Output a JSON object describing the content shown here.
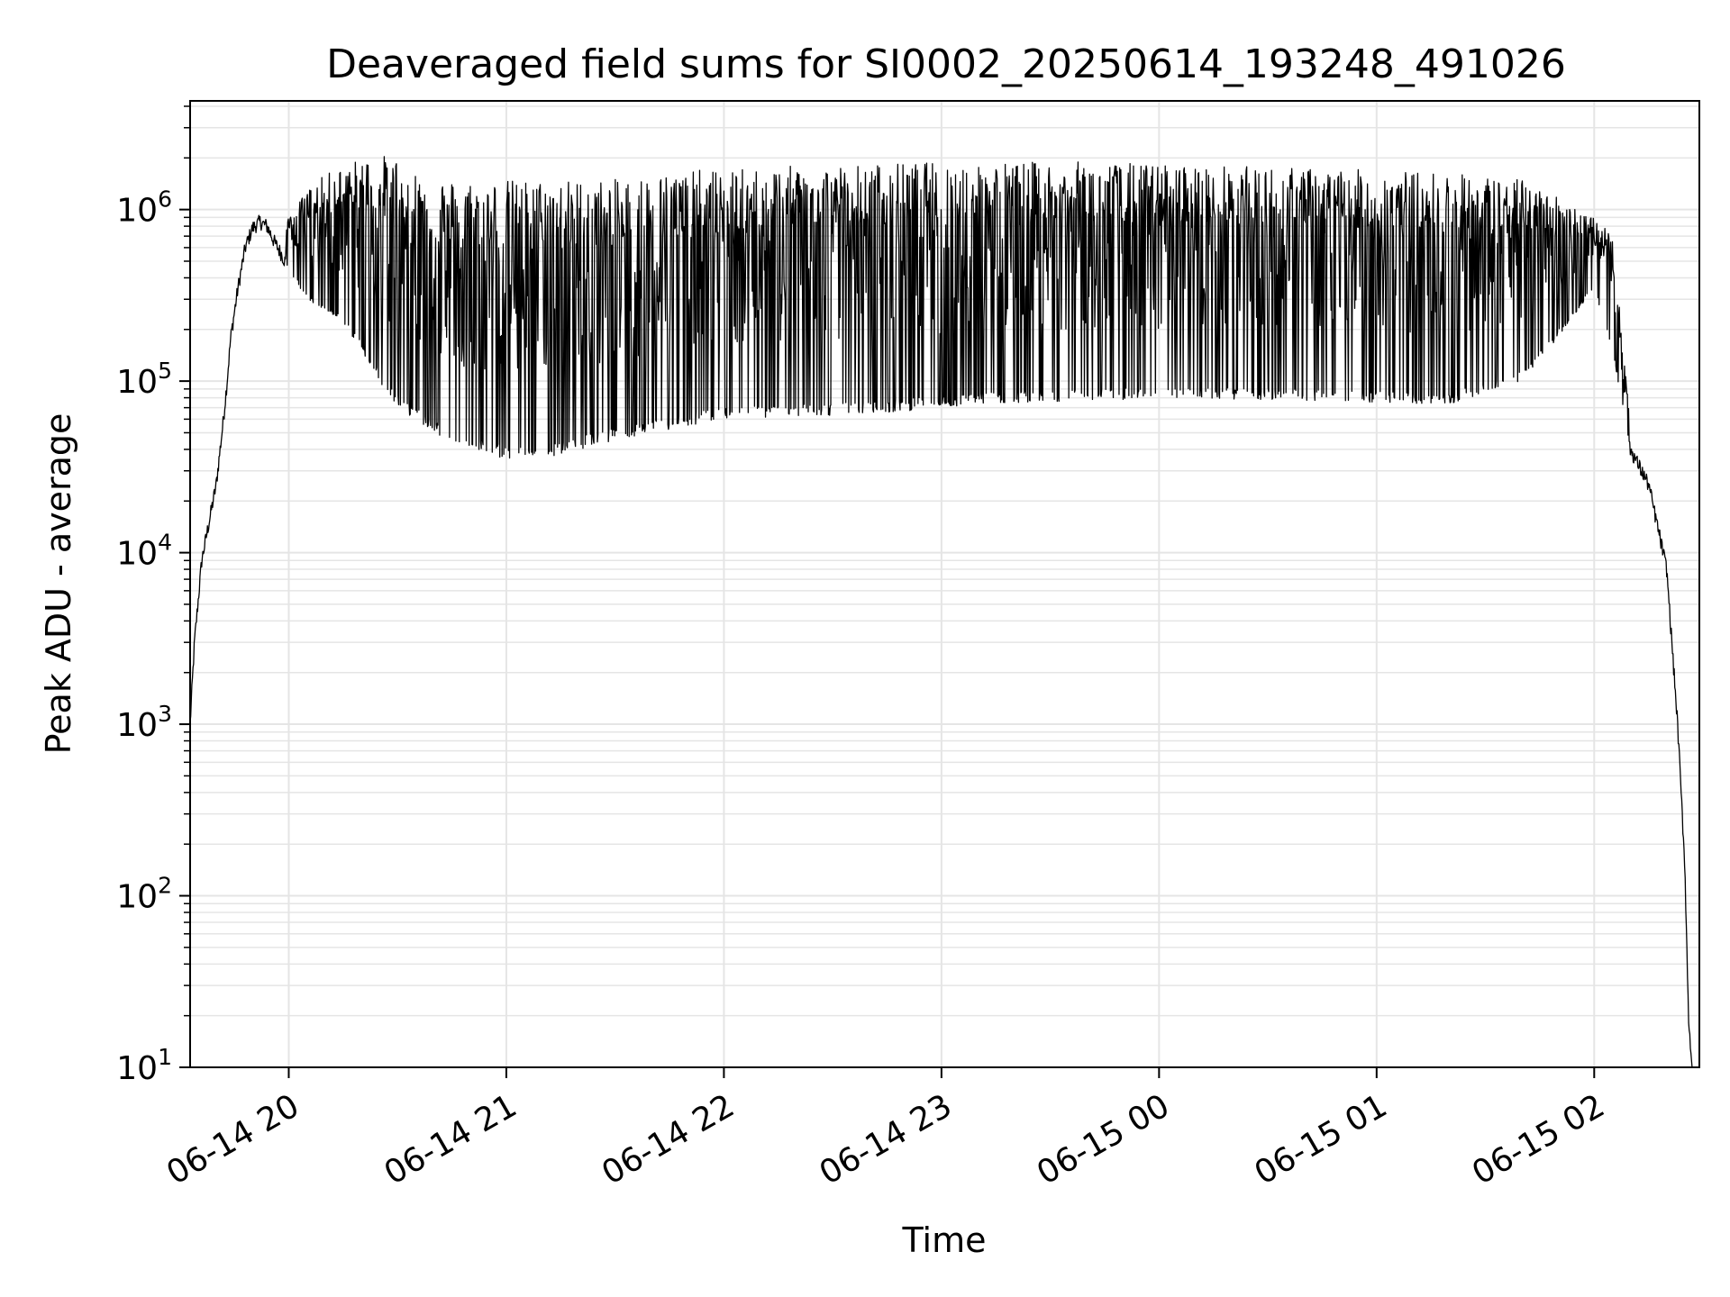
{
  "chart_data": {
    "type": "line",
    "title": "Deaveraged field sums for SI0002_20250614_193248_491026",
    "xlabel": "Time",
    "ylabel": "Peak ADU - average",
    "yscale": "log",
    "xlim": [
      "2025-06-14T19:32:48",
      "2025-06-15T02:29:00"
    ],
    "ylim": [
      10,
      4300000
    ],
    "grid": true,
    "line_color": "#000000",
    "grid_color": "#e5e5e5",
    "x_ticks": [
      {
        "time": "2025-06-14T20:00:00",
        "label": "06-14 20"
      },
      {
        "time": "2025-06-14T21:00:00",
        "label": "06-14 21"
      },
      {
        "time": "2025-06-14T22:00:00",
        "label": "06-14 22"
      },
      {
        "time": "2025-06-14T23:00:00",
        "label": "06-14 23"
      },
      {
        "time": "2025-06-15T00:00:00",
        "label": "06-15 00"
      },
      {
        "time": "2025-06-15T01:00:00",
        "label": "06-15 01"
      },
      {
        "time": "2025-06-15T02:00:00",
        "label": "06-15 02"
      }
    ],
    "y_ticks": [
      {
        "value": 10,
        "base": "10",
        "exp": "1"
      },
      {
        "value": 100,
        "base": "10",
        "exp": "2"
      },
      {
        "value": 1000,
        "base": "10",
        "exp": "3"
      },
      {
        "value": 10000,
        "base": "10",
        "exp": "4"
      },
      {
        "value": 100000,
        "base": "10",
        "exp": "5"
      },
      {
        "value": 1000000,
        "base": "10",
        "exp": "6"
      }
    ],
    "series": [
      {
        "x": [
          "2025-06-14T19:32:48",
          "2025-06-14T19:34:00",
          "2025-06-14T19:36:00",
          "2025-06-14T19:38:00",
          "2025-06-14T19:40:00",
          "2025-06-14T19:42:00",
          "2025-06-14T19:43:00",
          "2025-06-14T19:44:00",
          "2025-06-14T19:46:00",
          "2025-06-14T19:48:00",
          "2025-06-14T19:50:00",
          "2025-06-14T19:52:00",
          "2025-06-14T19:54:00",
          "2025-06-14T19:56:00",
          "2025-06-14T19:58:00",
          "2025-06-14T20:00:00",
          "2025-06-14T20:05:00",
          "2025-06-14T20:10:00",
          "2025-06-14T20:15:00",
          "2025-06-14T20:20:00",
          "2025-06-14T20:25:00",
          "2025-06-14T20:30:00",
          "2025-06-14T20:35:00",
          "2025-06-14T20:40:00",
          "2025-06-14T20:45:00",
          "2025-06-14T20:50:00",
          "2025-06-14T20:55:00",
          "2025-06-14T21:00:00",
          "2025-06-14T21:10:00",
          "2025-06-14T21:20:00",
          "2025-06-14T21:30:00",
          "2025-06-14T21:40:00",
          "2025-06-14T21:50:00",
          "2025-06-14T22:00:00",
          "2025-06-14T22:20:00",
          "2025-06-14T22:40:00",
          "2025-06-14T23:00:00",
          "2025-06-14T23:20:00",
          "2025-06-14T23:40:00",
          "2025-06-15T00:00:00",
          "2025-06-15T00:20:00",
          "2025-06-15T00:40:00",
          "2025-06-15T01:00:00",
          "2025-06-15T01:20:00",
          "2025-06-15T01:40:00",
          "2025-06-15T01:50:00",
          "2025-06-15T02:00:00",
          "2025-06-15T02:05:00",
          "2025-06-15T02:10:00",
          "2025-06-15T02:15:00",
          "2025-06-15T02:20:00",
          "2025-06-15T02:23:00",
          "2025-06-15T02:25:00",
          "2025-06-15T02:26:00",
          "2025-06-15T02:27:00"
        ],
        "baseline": [
          1000,
          3000,
          9000,
          15000,
          25000,
          60000,
          100000,
          180000,
          350000,
          600000,
          780000,
          850000,
          800000,
          650000,
          550000,
          450000,
          300000,
          250000,
          220000,
          150000,
          100000,
          70000,
          60000,
          50000,
          45000,
          40000,
          37000,
          35000,
          35000,
          40000,
          45000,
          50000,
          55000,
          60000,
          62000,
          64000,
          70000,
          75000,
          77000,
          78000,
          78000,
          77000,
          75000,
          73000,
          100000,
          180000,
          350000,
          150000,
          40000,
          25000,
          8000,
          1000,
          150,
          20,
          10
        ],
        "peak": [
          1000,
          3000,
          9000,
          15000,
          25000,
          60000,
          100000,
          180000,
          350000,
          600000,
          780000,
          850000,
          800000,
          700000,
          650000,
          900000,
          1300000,
          1600000,
          1800000,
          2000000,
          2100000,
          2000000,
          1700000,
          1600000,
          1500000,
          1500000,
          1500000,
          1500000,
          1500000,
          1500000,
          1500000,
          1600000,
          1700000,
          1700000,
          1800000,
          1850000,
          1900000,
          1900000,
          1900000,
          1850000,
          1800000,
          1750000,
          1700000,
          1650000,
          1500000,
          1200000,
          900000,
          700000,
          60000,
          25000,
          8000,
          1000,
          150,
          20,
          10
        ]
      }
    ]
  }
}
